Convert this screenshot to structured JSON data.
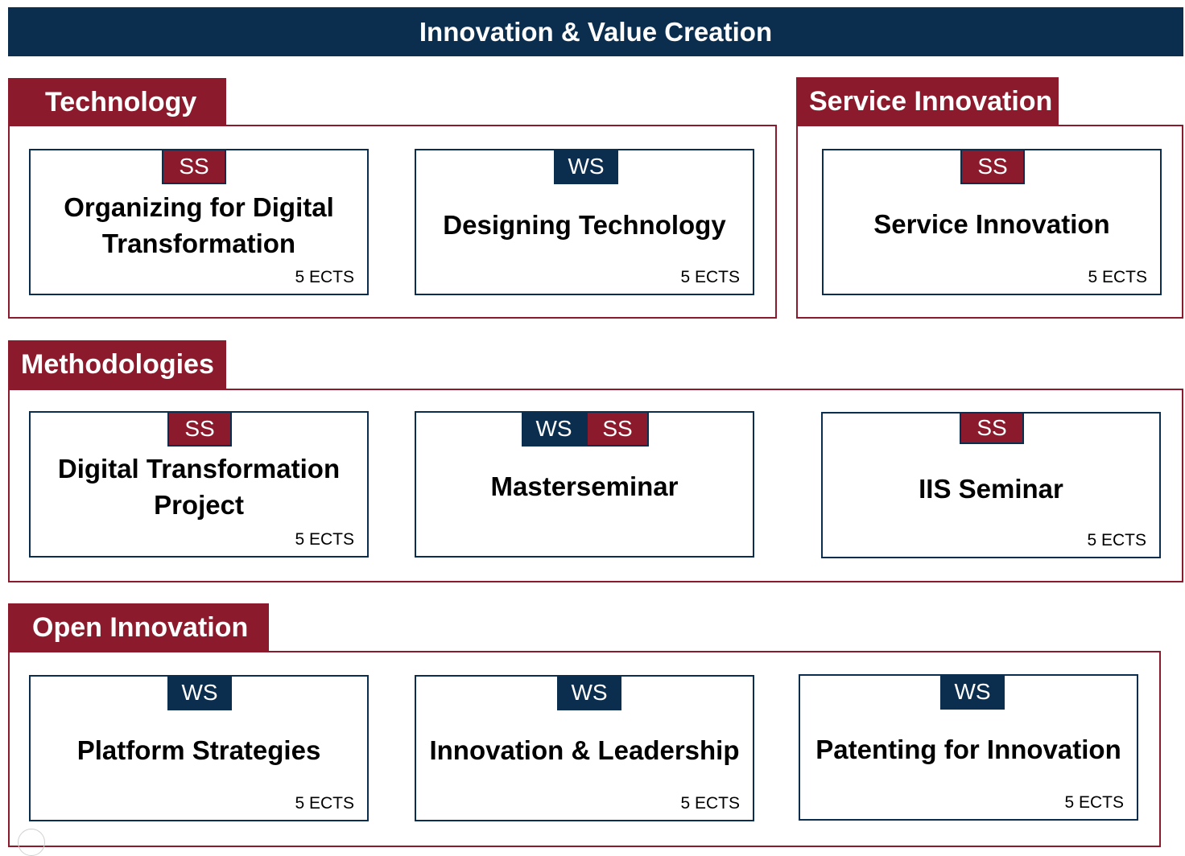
{
  "header": {
    "title": "Innovation & Value Creation"
  },
  "sections": {
    "technology": {
      "label": "Technology"
    },
    "service_innovation": {
      "label": "Service Innovation"
    },
    "methodologies": {
      "label": "Methodologies"
    },
    "open_innovation": {
      "label": "Open Innovation"
    }
  },
  "modules": {
    "organizing": {
      "term": "SS",
      "line1": "Organizing for Digital",
      "line2": "Transformation",
      "ects": "5 ECTS"
    },
    "designing": {
      "term": "WS",
      "title": "Designing Technology",
      "ects": "5 ECTS"
    },
    "service": {
      "term": "SS",
      "title": "Service Innovation",
      "ects": "5 ECTS"
    },
    "dtproject": {
      "term": "SS",
      "line1": "Digital Transformation",
      "line2": "Project",
      "ects": "5 ECTS"
    },
    "masterseminar": {
      "terms": [
        "WS",
        "SS"
      ],
      "title": "Masterseminar"
    },
    "iis": {
      "term": "SS",
      "title": "IIS Seminar",
      "ects": "5 ECTS"
    },
    "platform": {
      "term": "WS",
      "title": "Platform Strategies",
      "ects": "5 ECTS"
    },
    "leadership": {
      "term": "WS",
      "title": "Innovation & Leadership",
      "ects": "5 ECTS"
    },
    "patenting": {
      "term": "WS",
      "title": "Patenting for Innovation",
      "ects": "5 ECTS"
    }
  },
  "colors": {
    "navy": "#0b2e4f",
    "maroon": "#8b1b2c"
  }
}
